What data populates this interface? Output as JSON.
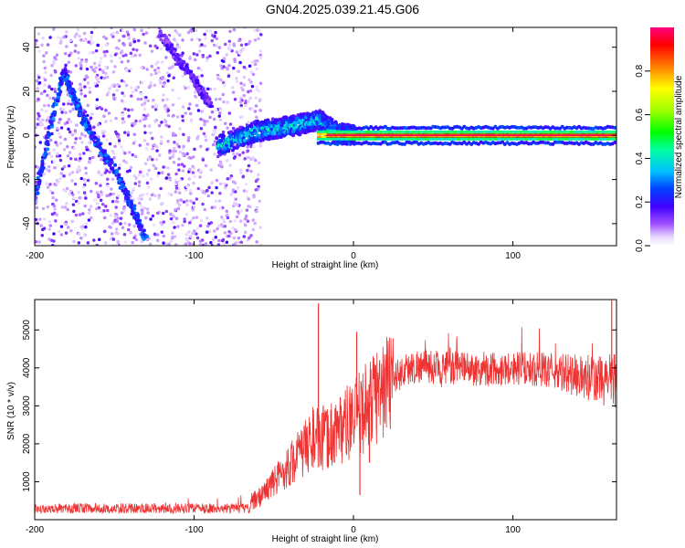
{
  "title": "GN04.2025.039.21.45.G06",
  "chart_data": [
    {
      "type": "heatmap",
      "xlabel": "Height of straight line (km)",
      "ylabel": "Frequency (Hz)",
      "xlim": [
        -200,
        165
      ],
      "ylim": [
        -50,
        49
      ],
      "xticks": [
        -200,
        -100,
        0,
        100
      ],
      "yticks": [
        -40,
        -20,
        0,
        20,
        40
      ],
      "colorbar": {
        "label": "Normalized spectral amplitude",
        "range": [
          0,
          1
        ],
        "ticks": [
          "0.0",
          "0.2",
          "0.4",
          "0.6",
          "0.8"
        ],
        "tick_values": [
          0,
          0.2,
          0.4,
          0.6,
          0.8
        ]
      },
      "features": [
        {
          "kind": "noise-region",
          "x": [
            -200,
            -58
          ],
          "level": 0.08
        },
        {
          "kind": "streak",
          "points": [
            [
              -200,
              -28
            ],
            [
              -182,
              29
            ],
            [
              -168,
              5
            ],
            [
              -148,
              -18
            ],
            [
              -130,
              -47
            ]
          ],
          "level": 0.25
        },
        {
          "kind": "streak",
          "points": [
            [
              -122,
              47
            ],
            [
              -100,
              25
            ],
            [
              -90,
              14
            ]
          ],
          "level": 0.15
        },
        {
          "kind": "band",
          "points": [
            [
              -85,
              -5
            ],
            [
              -60,
              2
            ],
            [
              -40,
              4
            ],
            [
              -22,
              7
            ],
            [
              -10,
              1
            ],
            [
              0,
              0
            ]
          ],
          "level": 0.35
        },
        {
          "kind": "carrier",
          "x": [
            -22,
            165
          ],
          "y": 0,
          "level": 0.97
        }
      ]
    },
    {
      "type": "line",
      "xlabel": "Height of straight line (km)",
      "ylabel": "SNR (10 * v/v)",
      "xlim": [
        -200,
        165
      ],
      "ylim": [
        0,
        5800
      ],
      "xticks": [
        -200,
        -100,
        0,
        100
      ],
      "yticks": [
        1000,
        2000,
        3000,
        4000,
        5000
      ],
      "color": "#ee3333",
      "profile": [
        [
          -200,
          250
        ],
        [
          -150,
          260
        ],
        [
          -100,
          270
        ],
        [
          -70,
          300
        ],
        [
          -60,
          550
        ],
        [
          -50,
          1000
        ],
        [
          -40,
          1450
        ],
        [
          -30,
          1900
        ],
        [
          -25,
          2200
        ],
        [
          -20,
          2000
        ],
        [
          -10,
          2400
        ],
        [
          0,
          2600
        ],
        [
          10,
          3100
        ],
        [
          20,
          3500
        ],
        [
          30,
          3900
        ],
        [
          40,
          4050
        ],
        [
          60,
          4000
        ],
        [
          80,
          3950
        ],
        [
          100,
          4000
        ],
        [
          120,
          3950
        ],
        [
          140,
          3800
        ],
        [
          150,
          3650
        ],
        [
          165,
          3700
        ]
      ],
      "spikes": [
        {
          "x": -22,
          "y": 5700
        },
        {
          "x": -19,
          "y": 3000
        },
        {
          "x": 2,
          "y": 4950
        },
        {
          "x": 4,
          "y": 650
        },
        {
          "x": 10,
          "y": 1500
        },
        {
          "x": 162,
          "y": 5800
        }
      ]
    }
  ]
}
